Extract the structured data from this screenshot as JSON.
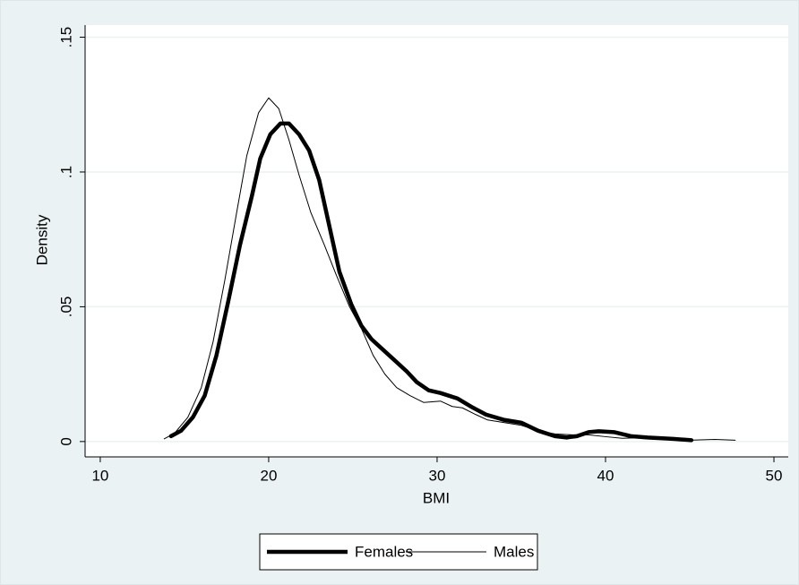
{
  "chart_data": {
    "type": "line",
    "x_label": "BMI",
    "y_label": "Density",
    "xlim": [
      9.1,
      50.85
    ],
    "ylim": [
      -0.0057,
      0.1545
    ],
    "xticks": [
      10,
      20,
      30,
      40,
      50
    ],
    "yticks": [
      0,
      {
        "value": 0.05,
        "label": ".05"
      },
      {
        "value": 0.1,
        "label": ".1"
      },
      {
        "value": 0.15,
        "label": ".15"
      }
    ],
    "grid": true,
    "legend": "bottom",
    "series": [
      {
        "name": "Females",
        "color": "#000000",
        "width": 4.5,
        "x": [
          14.2,
          14.8,
          15.5,
          16.2,
          16.9,
          17.6,
          18.3,
          19.0,
          19.5,
          20.1,
          20.7,
          21.2,
          21.8,
          22.4,
          23.0,
          23.6,
          24.2,
          24.9,
          25.5,
          26.1,
          26.8,
          27.5,
          28.2,
          28.8,
          29.5,
          30.2,
          31.2,
          32.0,
          32.9,
          34.0,
          35.0,
          36.0,
          37.0,
          37.7,
          38.3,
          39.0,
          39.6,
          40.5,
          41.5,
          42.5,
          44.0,
          45.1
        ],
        "values": [
          0.002,
          0.004,
          0.009,
          0.017,
          0.032,
          0.052,
          0.073,
          0.091,
          0.105,
          0.114,
          0.118,
          0.118,
          0.114,
          0.108,
          0.097,
          0.08,
          0.063,
          0.051,
          0.043,
          0.038,
          0.034,
          0.03,
          0.026,
          0.022,
          0.019,
          0.018,
          0.016,
          0.013,
          0.01,
          0.008,
          0.007,
          0.004,
          0.002,
          0.0015,
          0.002,
          0.0035,
          0.0038,
          0.0035,
          0.002,
          0.0015,
          0.001,
          0.0005
        ]
      },
      {
        "name": "Males",
        "color": "#000000",
        "width": 1,
        "x": [
          13.8,
          14.4,
          15.2,
          16.0,
          16.7,
          17.4,
          18.1,
          18.7,
          19.4,
          20.0,
          20.6,
          21.2,
          21.8,
          22.5,
          23.3,
          24.0,
          24.8,
          25.5,
          26.2,
          26.9,
          27.6,
          28.4,
          29.2,
          30.2,
          30.9,
          31.5,
          32.3,
          33.0,
          34.0,
          35.0,
          36.0,
          37.0,
          38.0,
          39.0,
          40.0,
          41.0,
          42.0,
          43.0,
          44.0,
          45.0,
          46.5,
          47.7
        ],
        "values": [
          0.001,
          0.003,
          0.009,
          0.02,
          0.037,
          0.06,
          0.085,
          0.106,
          0.122,
          0.1275,
          0.1235,
          0.112,
          0.099,
          0.085,
          0.073,
          0.062,
          0.05,
          0.042,
          0.032,
          0.025,
          0.02,
          0.017,
          0.0145,
          0.015,
          0.013,
          0.0125,
          0.01,
          0.008,
          0.007,
          0.006,
          0.004,
          0.0028,
          0.0025,
          0.0025,
          0.0018,
          0.0012,
          0.0014,
          0.0012,
          0.0008,
          0.0005,
          0.0008,
          0.0005
        ]
      }
    ]
  }
}
